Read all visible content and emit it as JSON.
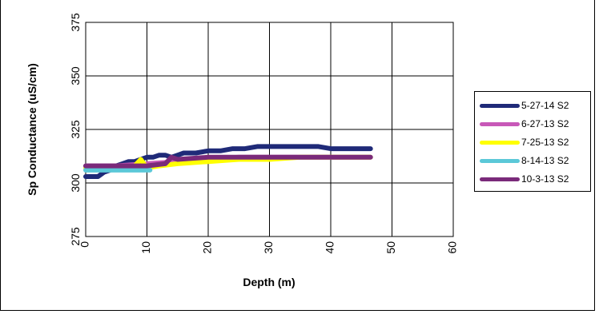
{
  "chart_data": {
    "type": "line",
    "xlabel": "Depth (m)",
    "ylabel": "Sp Conductance (uS/cm)",
    "xlim": [
      0,
      60
    ],
    "ylim": [
      275,
      375
    ],
    "x_ticks": [
      "0",
      "10",
      "20",
      "30",
      "40",
      "50",
      "60"
    ],
    "y_ticks": [
      "275",
      "300",
      "325",
      "350",
      "375"
    ],
    "grid": true,
    "legend_position": "right",
    "series": [
      {
        "name": "5-27-14 S2",
        "color": "#1f2a78",
        "x": [
          0,
          2,
          3,
          4,
          5,
          6,
          7,
          8,
          9,
          10,
          11,
          12,
          13,
          14,
          15,
          16,
          18,
          20,
          22,
          24,
          26,
          28,
          30,
          32,
          34,
          36,
          38,
          40,
          42,
          44,
          46.5
        ],
        "y": [
          303,
          303,
          305,
          306,
          308,
          309,
          310,
          310,
          311,
          312,
          312,
          313,
          313,
          312,
          313,
          314,
          314,
          315,
          315,
          316,
          316,
          317,
          317,
          317,
          317,
          317,
          317,
          316,
          316,
          316,
          316
        ]
      },
      {
        "name": "6-27-13 S2",
        "color": "#c858b8",
        "x": [
          0,
          5,
          10,
          15,
          20,
          25,
          30,
          35,
          40,
          46.5
        ],
        "y": [
          308,
          308,
          309,
          310,
          311,
          312,
          312,
          312,
          312,
          312
        ]
      },
      {
        "name": "7-25-13 S2",
        "color": "#ffff00",
        "x": [
          0,
          5,
          8,
          9,
          10,
          12,
          15,
          20,
          25,
          30,
          35,
          40,
          46.5
        ],
        "y": [
          307,
          307,
          308,
          311,
          307,
          308,
          309,
          310,
          311,
          311,
          312,
          312,
          312
        ]
      },
      {
        "name": "8-14-13 S2",
        "color": "#5bc8d8",
        "x": [
          0,
          4,
          8,
          10.5
        ],
        "y": [
          306,
          306,
          306,
          306
        ]
      },
      {
        "name": "10-3-13 S2",
        "color": "#7a2a7a",
        "x": [
          0,
          5,
          10,
          13,
          14,
          15,
          20,
          25,
          30,
          35,
          40,
          46.5
        ],
        "y": [
          308,
          308,
          308,
          309,
          312,
          311,
          312,
          312,
          312,
          312,
          312,
          312
        ]
      }
    ]
  }
}
